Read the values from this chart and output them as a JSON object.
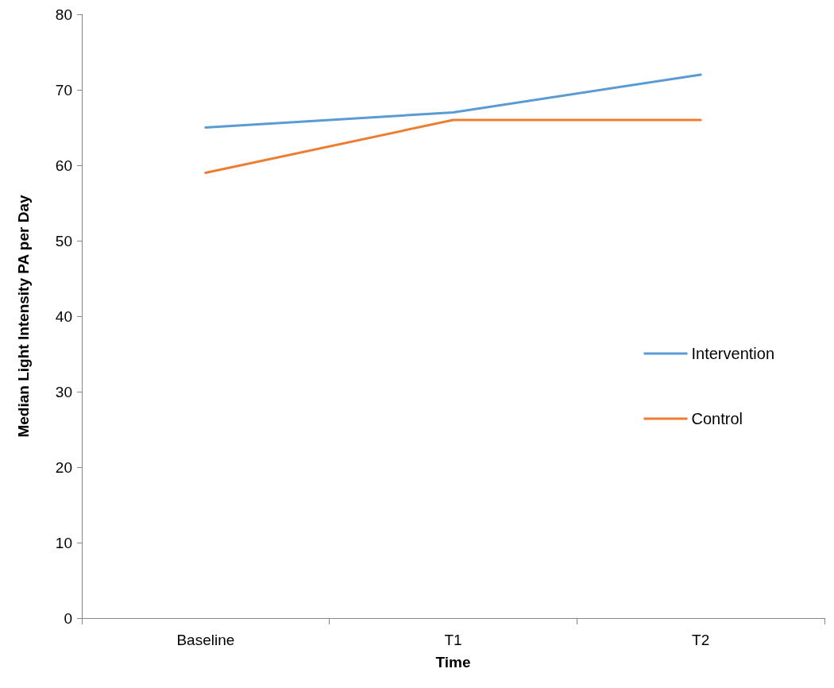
{
  "chart_data": {
    "type": "line",
    "xlabel": "Time",
    "ylabel": "Median Light Intensity PA per Day",
    "categories": [
      "Baseline",
      "T1",
      "T2"
    ],
    "series": [
      {
        "name": "Intervention",
        "color": "#5b9bd5",
        "values": [
          65,
          67,
          72
        ]
      },
      {
        "name": "Control",
        "color": "#ed7d31",
        "values": [
          59,
          66,
          66
        ]
      }
    ],
    "ylim": [
      0,
      80
    ],
    "yticks": [
      0,
      10,
      20,
      30,
      40,
      50,
      60,
      70,
      80
    ],
    "grid": false,
    "legend": "right",
    "marker": "none",
    "line_style": "solid"
  }
}
